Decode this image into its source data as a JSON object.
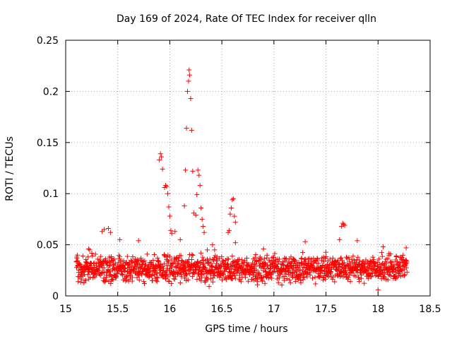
{
  "chart_data": {
    "type": "scatter",
    "title": "Day 169 of 2024, Rate Of TEC Index for receiver qlln",
    "xlabel": "GPS time / hours",
    "ylabel": "ROTI / TECUs",
    "xlim": [
      15,
      18.5
    ],
    "ylim": [
      0,
      0.25
    ],
    "xticks": [
      15,
      15.5,
      16,
      16.5,
      17,
      17.5,
      18,
      18.5
    ],
    "xtick_labels": [
      "15",
      "15.5",
      "16",
      "16.5",
      "17",
      "17.5",
      "18",
      "18.5"
    ],
    "yticks": [
      0,
      0.05,
      0.1,
      0.15,
      0.2,
      0.25
    ],
    "ytick_labels": [
      "0",
      "0.05",
      "0.1",
      "0.15",
      "0.2",
      "0.25"
    ],
    "grid": true,
    "marker": "+",
    "color": "#ff0000",
    "x_range_data": [
      15.1,
      18.28
    ],
    "baseline_band": [
      0.008,
      0.045
    ],
    "series": [
      {
        "name": "ROTI",
        "points": [
          [
            15.9,
            0.133
          ],
          [
            15.91,
            0.139
          ],
          [
            15.92,
            0.136
          ],
          [
            15.93,
            0.124
          ],
          [
            15.95,
            0.106
          ],
          [
            15.96,
            0.108
          ],
          [
            15.97,
            0.107
          ],
          [
            15.98,
            0.1
          ],
          [
            15.99,
            0.087
          ],
          [
            16.0,
            0.078
          ],
          [
            16.01,
            0.064
          ],
          [
            16.02,
            0.061
          ],
          [
            16.05,
            0.063
          ],
          [
            16.1,
            0.055
          ],
          [
            16.14,
            0.088
          ],
          [
            16.15,
            0.123
          ],
          [
            16.16,
            0.164
          ],
          [
            16.17,
            0.2
          ],
          [
            16.18,
            0.21
          ],
          [
            16.185,
            0.221
          ],
          [
            16.19,
            0.216
          ],
          [
            16.2,
            0.193
          ],
          [
            16.21,
            0.162
          ],
          [
            16.22,
            0.122
          ],
          [
            16.23,
            0.081
          ],
          [
            16.25,
            0.079
          ],
          [
            16.26,
            0.099
          ],
          [
            16.27,
            0.123
          ],
          [
            16.28,
            0.118
          ],
          [
            16.29,
            0.108
          ],
          [
            16.3,
            0.086
          ],
          [
            16.31,
            0.075
          ],
          [
            16.32,
            0.068
          ],
          [
            16.33,
            0.062
          ],
          [
            16.36,
            0.045
          ],
          [
            16.41,
            0.05
          ],
          [
            16.43,
            0.045
          ],
          [
            16.56,
            0.062
          ],
          [
            16.57,
            0.064
          ],
          [
            16.58,
            0.08
          ],
          [
            16.59,
            0.086
          ],
          [
            16.6,
            0.094
          ],
          [
            16.61,
            0.095
          ],
          [
            16.62,
            0.078
          ],
          [
            16.63,
            0.072
          ],
          [
            15.35,
            0.063
          ],
          [
            15.37,
            0.065
          ],
          [
            15.41,
            0.066
          ],
          [
            15.43,
            0.062
          ],
          [
            15.52,
            0.055
          ],
          [
            15.7,
            0.054
          ],
          [
            16.63,
            0.052
          ],
          [
            16.9,
            0.046
          ],
          [
            17.3,
            0.053
          ],
          [
            17.65,
            0.068
          ],
          [
            17.66,
            0.071
          ],
          [
            17.67,
            0.07
          ],
          [
            17.68,
            0.069
          ],
          [
            17.63,
            0.055
          ],
          [
            17.8,
            0.054
          ],
          [
            18.05,
            0.048
          ],
          [
            18.27,
            0.047
          ],
          [
            15.22,
            0.046
          ],
          [
            15.23,
            0.045
          ],
          [
            18.0,
            0.006
          ]
        ]
      }
    ]
  }
}
